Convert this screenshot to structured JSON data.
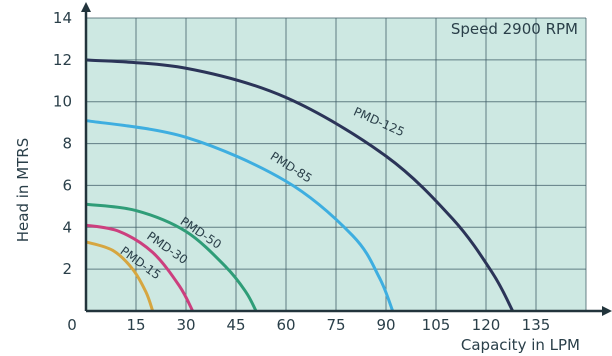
{
  "chart_data": {
    "type": "line",
    "annotation": "Speed 2900 RPM",
    "xlabel": "Capacity in LPM",
    "ylabel": "Head in MTRS",
    "xlim": [
      0,
      150
    ],
    "ylim": [
      0,
      14
    ],
    "x_ticks": [
      0,
      15,
      30,
      45,
      60,
      75,
      90,
      105,
      120,
      135
    ],
    "y_ticks": [
      2,
      4,
      6,
      8,
      10,
      12,
      14
    ],
    "grid": true,
    "colors": {
      "background": "#cde8e2",
      "grid": "#3c5a64",
      "axis": "#22343c"
    },
    "series": [
      {
        "name": "PMD-125",
        "color": "#2b3458",
        "x": [
          0,
          30,
          60,
          90,
          110,
          122,
          128
        ],
        "y": [
          12,
          11.6,
          10.2,
          7.4,
          4.4,
          1.8,
          0
        ]
      },
      {
        "name": "PMD-85",
        "color": "#3eaee0",
        "x": [
          0,
          30,
          60,
          80,
          88,
          92
        ],
        "y": [
          9.1,
          8.3,
          6.2,
          3.6,
          1.6,
          0
        ]
      },
      {
        "name": "PMD-50",
        "color": "#2f9d78",
        "x": [
          0,
          15,
          30,
          42,
          48,
          51
        ],
        "y": [
          5.1,
          4.8,
          3.8,
          2.1,
          0.9,
          0
        ]
      },
      {
        "name": "PMD-30",
        "color": "#cc3f7e",
        "x": [
          0,
          10,
          20,
          28,
          32
        ],
        "y": [
          4.1,
          3.8,
          2.8,
          1.2,
          0
        ]
      },
      {
        "name": "PMD-15",
        "color": "#d6a640",
        "x": [
          0,
          8,
          14,
          18,
          20
        ],
        "y": [
          3.3,
          2.9,
          2.0,
          0.9,
          0
        ]
      }
    ]
  }
}
